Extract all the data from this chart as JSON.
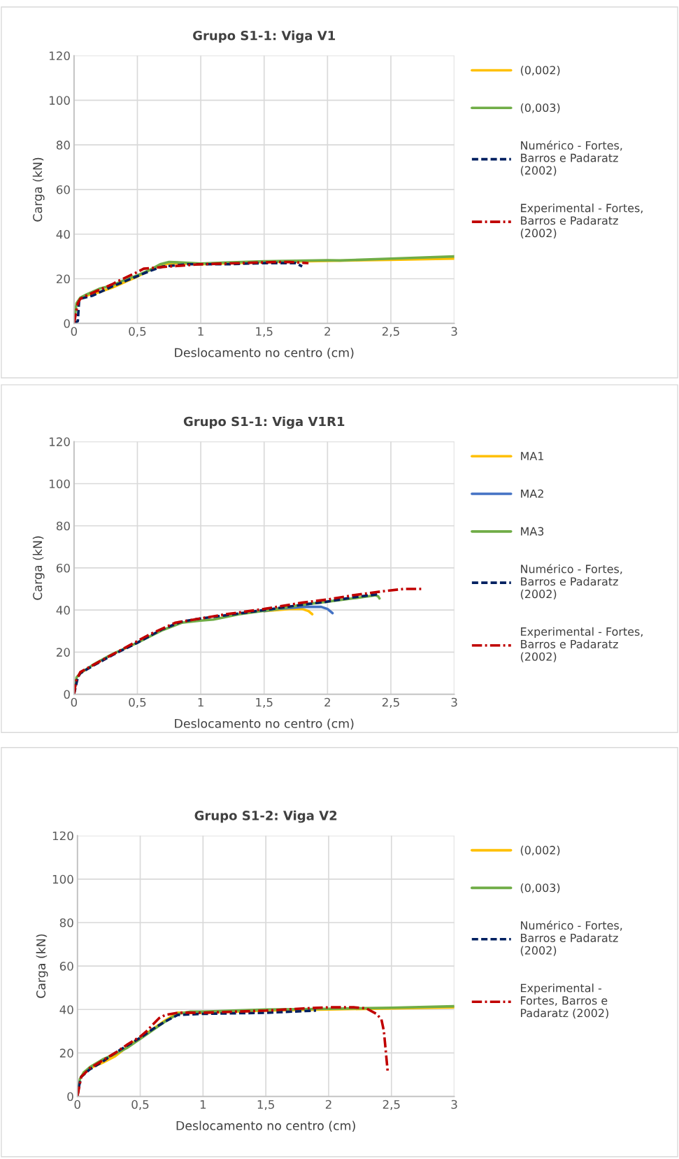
{
  "chart_data": [
    {
      "type": "line",
      "title": "Grupo S1-1: Viga V1",
      "xlabel": "Deslocamento no centro (cm)",
      "ylabel": "Carga (kN)",
      "xlim": [
        0,
        3
      ],
      "ylim": [
        0,
        120
      ],
      "xticks": [
        0,
        {
          "value": 0.5,
          "label": "0,5"
        },
        1,
        {
          "value": 1.5,
          "label": "1,5"
        },
        2,
        {
          "value": 2.5,
          "label": "2,5"
        },
        3
      ],
      "yticks": [
        0,
        20,
        40,
        60,
        80,
        100,
        120
      ],
      "grid": true,
      "legend": "right",
      "marker": "none",
      "series": [
        {
          "name": "(0,002)",
          "color": "#ffc000",
          "line_style": "solid",
          "x": [
            0.05,
            0.1,
            0.2,
            0.3,
            0.4,
            0.5,
            0.6,
            0.7,
            0.8,
            1,
            1.5,
            2,
            2.5,
            3
          ],
          "values": [
            11,
            12.5,
            14,
            16,
            18.5,
            21,
            24,
            26.5,
            27,
            26.5,
            27.5,
            28,
            28.5,
            29
          ]
        },
        {
          "name": "(0,003)",
          "color": "#70ad47",
          "line_style": "solid",
          "x": [
            0,
            0.02,
            0.05,
            0.1,
            0.2,
            0.3,
            0.4,
            0.5,
            0.6,
            0.68,
            0.75,
            0.85,
            1,
            1.2,
            1.5,
            2,
            2.1,
            2.5,
            3
          ],
          "values": [
            0,
            9,
            11.5,
            13,
            15.5,
            17,
            19.5,
            21.5,
            24,
            26.5,
            27.5,
            27.3,
            26.8,
            27.3,
            27.8,
            28.3,
            28.2,
            29,
            30
          ]
        },
        {
          "name": "Numérico - Fortes,\nBarros e Padaratz\n(2002)",
          "color": "#002060",
          "line_style": "dashed",
          "x": [
            0,
            0.03,
            0.04,
            0.05,
            0.15,
            0.3,
            0.45,
            0.6,
            0.7,
            0.9,
            1.2,
            1.5,
            1.75,
            1.8
          ],
          "values": [
            0,
            1,
            10,
            11,
            12.5,
            16.5,
            20,
            23.5,
            25.5,
            26.5,
            26.5,
            27,
            27,
            25.5
          ]
        },
        {
          "name": "Experimental - Fortes,\nBarros e Padaratz\n(2002)",
          "color": "#c00000",
          "line_style": "dashdot",
          "x": [
            0,
            0.03,
            0.05,
            0.1,
            0.2,
            0.3,
            0.35,
            0.5,
            0.55,
            0.65,
            0.75,
            1,
            1.3,
            1.6,
            1.7,
            1.85
          ],
          "values": [
            0,
            9,
            11,
            12.5,
            15,
            17.5,
            19,
            23,
            24.5,
            25,
            25.5,
            26.5,
            27,
            27.5,
            27.5,
            27
          ]
        }
      ]
    },
    {
      "type": "line",
      "title": "Grupo S1-1: Viga V1R1",
      "xlabel": "Deslocamento no centro (cm)",
      "ylabel": "Carga (kN)",
      "xlim": [
        0,
        3
      ],
      "ylim": [
        0,
        120
      ],
      "xticks": [
        0,
        {
          "value": 0.5,
          "label": "0,5"
        },
        1,
        {
          "value": 1.5,
          "label": "1,5"
        },
        2,
        {
          "value": 2.5,
          "label": "2,5"
        },
        3
      ],
      "yticks": [
        0,
        20,
        40,
        60,
        80,
        100,
        120
      ],
      "grid": true,
      "legend": "right",
      "marker": "none",
      "series": [
        {
          "name": "MA1",
          "color": "#ffc000",
          "line_style": "solid",
          "x": [
            1.5,
            1.6,
            1.7,
            1.8,
            1.85,
            1.88
          ],
          "values": [
            39.5,
            40,
            40.5,
            40.5,
            39.5,
            38
          ]
        },
        {
          "name": "MA2",
          "color": "#4472c4",
          "line_style": "solid",
          "x": [
            1.5,
            1.6,
            1.8,
            1.95,
            2,
            2.04
          ],
          "values": [
            39.5,
            40.5,
            41.5,
            41.5,
            40.5,
            38.5
          ]
        },
        {
          "name": "MA3",
          "color": "#70ad47",
          "line_style": "solid",
          "x": [
            0,
            0.02,
            0.05,
            0.15,
            0.3,
            0.5,
            0.7,
            0.85,
            1,
            1.1,
            1.3,
            1.6,
            1.8,
            2,
            2.2,
            2.38,
            2.4,
            2.41
          ],
          "values": [
            0,
            8,
            10,
            14,
            19,
            24.5,
            30.5,
            34,
            35,
            35.5,
            38,
            40.5,
            42.5,
            44,
            45.5,
            47,
            46.5,
            45.5
          ]
        },
        {
          "name": "Numérico - Fortes,\nBarros e Padaratz\n(2002)",
          "color": "#002060",
          "line_style": "dashed",
          "x": [
            0,
            0.03,
            0.05,
            0.15,
            0.3,
            0.5,
            0.7,
            0.85,
            1,
            1.2,
            1.5,
            1.8,
            2,
            2.2,
            2.4
          ],
          "values": [
            0,
            8,
            10,
            13.5,
            18.5,
            24.5,
            31,
            34.5,
            36,
            37.5,
            40,
            42.5,
            44,
            46,
            47.5
          ]
        },
        {
          "name": "Experimental - Fortes,\nBarros e Padaratz\n(2002)",
          "color": "#c00000",
          "line_style": "dashdot",
          "x": [
            0,
            0.01,
            0.02,
            0.05,
            0.2,
            0.4,
            0.6,
            0.8,
            1,
            1.2,
            1.5,
            1.8,
            2,
            2.2,
            2.45,
            2.6,
            2.75
          ],
          "values": [
            0,
            4,
            7,
            10.5,
            15.5,
            22,
            28.5,
            34,
            36,
            38,
            40.5,
            43.5,
            45,
            47,
            49,
            50,
            50
          ]
        }
      ]
    },
    {
      "type": "line",
      "title": "Grupo S1-2: Viga V2",
      "xlabel": "Deslocamento no centro (cm)",
      "ylabel": "Carga (kN)",
      "xlim": [
        0,
        3
      ],
      "ylim": [
        0,
        120
      ],
      "xticks": [
        0,
        {
          "value": 0.5,
          "label": "0,5"
        },
        1,
        {
          "value": 1.5,
          "label": "1,5"
        },
        2,
        {
          "value": 2.5,
          "label": "2,5"
        },
        3
      ],
      "yticks": [
        0,
        20,
        40,
        60,
        80,
        100,
        120
      ],
      "grid": true,
      "legend": "right",
      "marker": "none",
      "series": [
        {
          "name": "(0,002)",
          "color": "#ffc000",
          "line_style": "solid",
          "x": [
            0.05,
            0.1,
            0.2,
            0.3,
            0.4,
            0.5,
            0.6,
            0.7,
            0.8,
            1,
            1.5,
            2,
            2.5,
            3
          ],
          "values": [
            11,
            13,
            15.5,
            18.5,
            23,
            27,
            31,
            35,
            38.5,
            38.5,
            39.5,
            40,
            40.5,
            41
          ]
        },
        {
          "name": "(0,003)",
          "color": "#70ad47",
          "line_style": "solid",
          "x": [
            0,
            0.02,
            0.05,
            0.1,
            0.2,
            0.3,
            0.4,
            0.5,
            0.6,
            0.7,
            0.8,
            0.9,
            1,
            1.5,
            2,
            2.5,
            3
          ],
          "values": [
            0,
            8,
            11,
            13.5,
            17,
            19.5,
            22.5,
            26.5,
            30.5,
            34.5,
            38,
            39,
            39,
            40,
            40.3,
            40.8,
            41.5
          ]
        },
        {
          "name": "Numérico - Fortes,\nBarros e Padaratz\n(2002)",
          "color": "#002060",
          "line_style": "dashed",
          "x": [
            0,
            0.01,
            0.03,
            0.1,
            0.2,
            0.3,
            0.4,
            0.5,
            0.6,
            0.7,
            0.8,
            1,
            1.5,
            1.9
          ],
          "values": [
            0,
            4,
            9,
            12.5,
            16,
            20,
            23.5,
            27,
            31,
            34.5,
            37.5,
            38,
            38.5,
            39.5
          ]
        },
        {
          "name": "Experimental -\nFortes, Barros e\nPadaratz (2002)",
          "color": "#c00000",
          "line_style": "dashdot",
          "x": [
            0,
            0.03,
            0.1,
            0.2,
            0.3,
            0.4,
            0.5,
            0.55,
            0.6,
            0.65,
            0.7,
            0.8,
            1,
            1.5,
            1.8,
            2,
            2.2,
            2.3,
            2.38,
            2.42,
            2.44,
            2.47
          ],
          "values": [
            0,
            9,
            13,
            16.5,
            20,
            24,
            27.5,
            30,
            33,
            36,
            37.5,
            38.5,
            38.5,
            39.5,
            40.5,
            41,
            41,
            40.5,
            38,
            35.5,
            30,
            11.5
          ]
        }
      ]
    }
  ]
}
